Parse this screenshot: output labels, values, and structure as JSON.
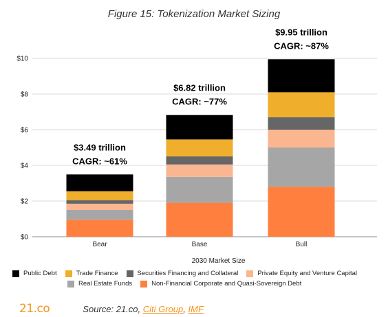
{
  "figure": {
    "title": "Figure 15: Tokenization Market Sizing"
  },
  "chart_data": {
    "type": "bar",
    "stacked": true,
    "categories": [
      "Bear",
      "Base",
      "Bull"
    ],
    "xlabel": "2030 Market Size",
    "ylabel": "",
    "ylim": [
      0,
      10
    ],
    "yticks": [
      "$0",
      "$2",
      "$4",
      "$6",
      "$8",
      "$10"
    ],
    "grid": true,
    "legend_position": "bottom",
    "series": [
      {
        "name": "Non-Financial Corporate and Quasi-Sovereign Debt",
        "color": "#FF7F3F",
        "values": [
          0.95,
          1.9,
          2.8
        ]
      },
      {
        "name": "Real Estate Funds",
        "color": "#A6A6A6",
        "values": [
          0.55,
          1.45,
          2.2
        ]
      },
      {
        "name": "Private Equity and Venture Capital",
        "color": "#F9B691",
        "values": [
          0.35,
          0.7,
          1.0
        ]
      },
      {
        "name": "Securities Financing and Collateral",
        "color": "#666666",
        "values": [
          0.2,
          0.45,
          0.7
        ]
      },
      {
        "name": "Trade Finance",
        "color": "#EFAE2C",
        "values": [
          0.5,
          0.95,
          1.4
        ]
      },
      {
        "name": "Public Debt",
        "color": "#000000",
        "values": [
          0.94,
          1.37,
          1.85
        ]
      }
    ],
    "bar_annotations": [
      {
        "value": "$3.49 trillion",
        "cagr": "CAGR: ~61%"
      },
      {
        "value": "$6.82  trillion",
        "cagr": "CAGR: ~77%"
      },
      {
        "value": "$9.95  trillion",
        "cagr": "CAGR: ~87%"
      }
    ],
    "legend_rows": [
      [
        "Public Debt",
        "Trade Finance",
        "Securities Financing and Collateral",
        "Private Equity and Venture Capital"
      ],
      [
        "Real Estate Funds",
        "Non-Financial Corporate and Quasi-Sovereign Debt"
      ]
    ]
  },
  "footer": {
    "brand": "21.co",
    "source_prefix": "Source: 21.co, ",
    "link_citi": "Citi Group",
    "separator": ", ",
    "link_imf": "IMF"
  }
}
